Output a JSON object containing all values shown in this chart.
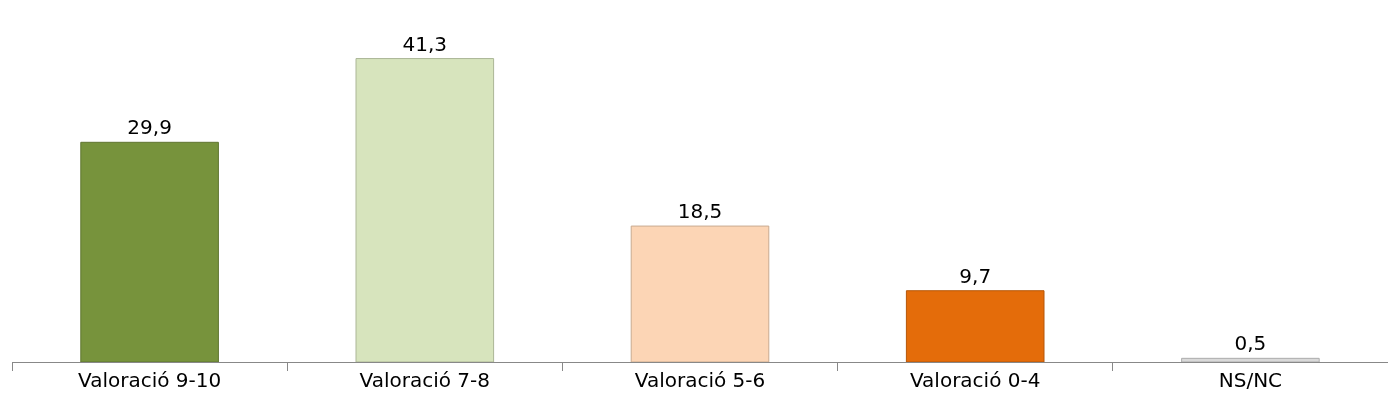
{
  "chart_data": {
    "type": "bar",
    "categories": [
      "Valoració 9-10",
      "Valoració 7-8",
      "Valoració 5-6",
      "Valoració 0-4",
      "NS/NC"
    ],
    "values": [
      29.9,
      41.3,
      18.5,
      9.7,
      0.5
    ],
    "colors": [
      "#77933c",
      "#d7e4bd",
      "#fcd5b5",
      "#e46c0a",
      "#d9d9d9"
    ],
    "value_labels": [
      "29,9",
      "41,3",
      "18,5",
      "9,7",
      "0,5"
    ]
  }
}
